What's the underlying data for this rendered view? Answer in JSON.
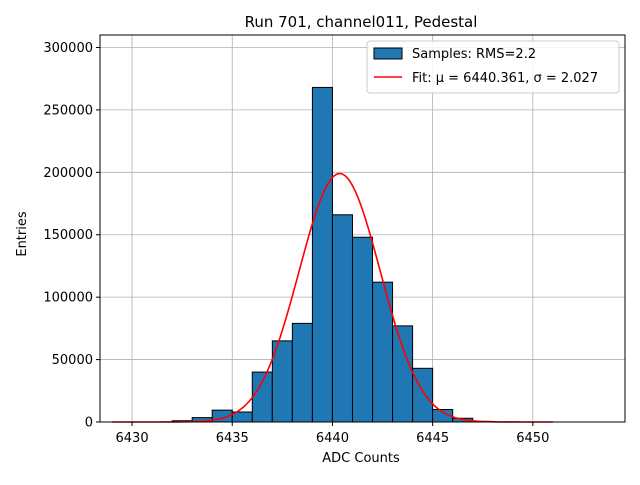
{
  "chart_data": {
    "type": "bar",
    "title": "Run 701, channel011, Pedestal",
    "xlabel": "ADC Counts",
    "ylabel": "Entries",
    "xlim": [
      6428.4,
      6454.6
    ],
    "ylim": [
      0,
      310000
    ],
    "x_ticks": [
      6430,
      6435,
      6440,
      6445,
      6450
    ],
    "y_ticks": [
      0,
      50000,
      100000,
      150000,
      200000,
      250000,
      300000
    ],
    "grid": true,
    "legend_position": "upper-right",
    "histogram": {
      "name": "Samples: RMS=2.2",
      "color": "#1f77b4",
      "edge_color": "#000000",
      "bins": [
        {
          "x0": 6432,
          "x1": 6433,
          "value": 1000
        },
        {
          "x0": 6433,
          "x1": 6434,
          "value": 3500
        },
        {
          "x0": 6434,
          "x1": 6435,
          "value": 9500
        },
        {
          "x0": 6435,
          "x1": 6436,
          "value": 8000
        },
        {
          "x0": 6436,
          "x1": 6437,
          "value": 40000
        },
        {
          "x0": 6437,
          "x1": 6438,
          "value": 65000
        },
        {
          "x0": 6438,
          "x1": 6439,
          "value": 79000
        },
        {
          "x0": 6439,
          "x1": 6440,
          "value": 268000
        },
        {
          "x0": 6440,
          "x1": 6441,
          "value": 166000
        },
        {
          "x0": 6441,
          "x1": 6442,
          "value": 148000
        },
        {
          "x0": 6442,
          "x1": 6443,
          "value": 112000
        },
        {
          "x0": 6443,
          "x1": 6444,
          "value": 77000
        },
        {
          "x0": 6444,
          "x1": 6445,
          "value": 43000
        },
        {
          "x0": 6445,
          "x1": 6446,
          "value": 10000
        },
        {
          "x0": 6446,
          "x1": 6447,
          "value": 3000
        },
        {
          "x0": 6447,
          "x1": 6448,
          "value": 500
        }
      ]
    },
    "fit": {
      "name": "Fit: μ = 6440.361, σ = 2.027",
      "color": "#ff0000",
      "mu": 6440.361,
      "sigma": 2.027,
      "peak": 199000,
      "x_range": [
        6429,
        6451
      ]
    }
  }
}
